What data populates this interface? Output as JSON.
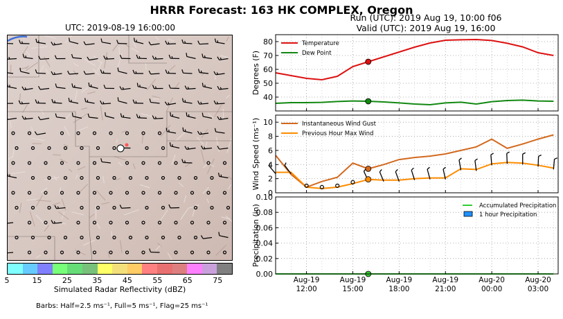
{
  "header": {
    "title": "HRRR Forecast: 163 HK COMPLEX, Oregon",
    "run": "Run (UTC): 2019 Aug 19, 10:00 f06",
    "valid": "Valid (UTC): 2019 Aug 19, 16:00"
  },
  "map": {
    "title": "UTC: 2019-08-19 16:00:00",
    "colorbar_label": "Simulated Radar Reflectivity (dBZ)",
    "colorbar_ticks": [
      "5",
      "15",
      "25",
      "35",
      "45",
      "55",
      "65",
      "75"
    ],
    "colorbar_colors": [
      "#7fffff",
      "#66ccff",
      "#8080ff",
      "#77ff77",
      "#66dd77",
      "#77c17a",
      "#ffff66",
      "#f4e07a",
      "#ffcc66",
      "#ff8080",
      "#e87070",
      "#dd7f7f",
      "#ff80ff",
      "#c9a0dc",
      "#808080"
    ],
    "barb_note": "Barbs: Half=2.5 ms⁻¹, Full=5 ms⁻¹, Flag=25 ms⁻¹"
  },
  "x_ticks": [
    {
      "line1": "Aug-19",
      "line2": "12:00"
    },
    {
      "line1": "Aug-19",
      "line2": "15:00"
    },
    {
      "line1": "Aug-19",
      "line2": "18:00"
    },
    {
      "line1": "Aug-19",
      "line2": "21:00"
    },
    {
      "line1": "Aug-20",
      "line2": "00:00"
    },
    {
      "line1": "Aug-20",
      "line2": "03:00"
    }
  ],
  "chart_data": [
    {
      "type": "line",
      "ylabel": "Degrees (F)",
      "ylim": [
        30,
        85
      ],
      "yticks": [
        40,
        50,
        60,
        70,
        80
      ],
      "grid": true,
      "legend": "top-left",
      "x": [
        "2019-08-19 10:00",
        "11:00",
        "12:00",
        "13:00",
        "14:00",
        "15:00",
        "16:00",
        "17:00",
        "18:00",
        "19:00",
        "20:00",
        "21:00",
        "22:00",
        "23:00",
        "2019-08-20 00:00",
        "01:00",
        "02:00",
        "03:00",
        "04:00"
      ],
      "series": [
        {
          "name": "Temperature",
          "color": "#dd1111",
          "values": [
            57.5,
            55.5,
            53.5,
            52.5,
            55,
            62,
            65.5,
            69,
            72.5,
            76,
            79,
            81,
            81.3,
            81.5,
            80.8,
            78.8,
            76.2,
            72,
            70
          ]
        },
        {
          "name": "Dew Point",
          "color": "#118811",
          "values": [
            35.5,
            36,
            36,
            36.2,
            36.8,
            37.2,
            37,
            36.5,
            35.8,
            35,
            34.5,
            35.8,
            36.3,
            35,
            36.7,
            37.5,
            37.8,
            37.2,
            37
          ]
        }
      ],
      "highlight": {
        "x": "2019-08-19 16:00",
        "values": [
          65.5,
          37
        ]
      }
    },
    {
      "type": "line",
      "ylabel": "Wind Speed (ms⁻¹)",
      "ylim": [
        0,
        11
      ],
      "yticks": [
        0,
        2,
        4,
        6,
        8,
        10
      ],
      "grid": true,
      "legend": "top-left",
      "x": [
        "2019-08-19 10:00",
        "11:00",
        "12:00",
        "13:00",
        "14:00",
        "15:00",
        "16:00",
        "17:00",
        "18:00",
        "19:00",
        "20:00",
        "21:00",
        "22:00",
        "23:00",
        "2019-08-20 00:00",
        "01:00",
        "02:00",
        "03:00",
        "04:00"
      ],
      "series": [
        {
          "name": "Instantaneous Wind Gust",
          "color": "#d2691e",
          "values": [
            5.3,
            2.6,
            0.8,
            1.6,
            2.2,
            4.2,
            3.4,
            4,
            4.7,
            5,
            5.2,
            5.5,
            6,
            6.5,
            7.6,
            6.3,
            6.9,
            7.6,
            8.2
          ]
        },
        {
          "name": "Previous Hour Max Wind",
          "color": "#ff8c00",
          "values": [
            2.9,
            2.9,
            0.8,
            0.6,
            0.8,
            1.3,
            1.9,
            1.8,
            1.8,
            2,
            2.1,
            2.1,
            3.4,
            3.3,
            4.1,
            4.3,
            4.2,
            3.9,
            3.5
          ]
        }
      ],
      "highlight": {
        "x": "2019-08-19 16:00",
        "values": [
          3.4,
          1.9
        ]
      }
    },
    {
      "type": "line",
      "ylabel": "Precipitation (in)",
      "ylim": [
        0,
        0.1
      ],
      "yticks": [
        0.0,
        0.02,
        0.04,
        0.06,
        0.08,
        0.1
      ],
      "ytick_labels": [
        "0.00",
        "0.02",
        "0.04",
        "0.06",
        "0.08",
        "0.10"
      ],
      "grid": true,
      "legend": "top-right",
      "x": [
        "2019-08-19 10:00",
        "11:00",
        "12:00",
        "13:00",
        "14:00",
        "15:00",
        "16:00",
        "17:00",
        "18:00",
        "19:00",
        "20:00",
        "21:00",
        "22:00",
        "23:00",
        "2019-08-20 00:00",
        "01:00",
        "02:00",
        "03:00",
        "04:00"
      ],
      "series": [
        {
          "name": "Accumulated Precipitation",
          "color": "#32cd32",
          "values": [
            0,
            0,
            0,
            0,
            0,
            0,
            0,
            0,
            0,
            0,
            0,
            0,
            0,
            0,
            0,
            0,
            0,
            0,
            0
          ]
        },
        {
          "name": "1 hour Precipitation",
          "color": "#1e90ff",
          "type": "bar",
          "values": [
            0,
            0,
            0,
            0,
            0,
            0,
            0,
            0,
            0,
            0,
            0,
            0,
            0,
            0,
            0,
            0,
            0,
            0,
            0
          ]
        }
      ],
      "highlight": {
        "x": "2019-08-19 16:00",
        "values": [
          0
        ]
      }
    }
  ]
}
